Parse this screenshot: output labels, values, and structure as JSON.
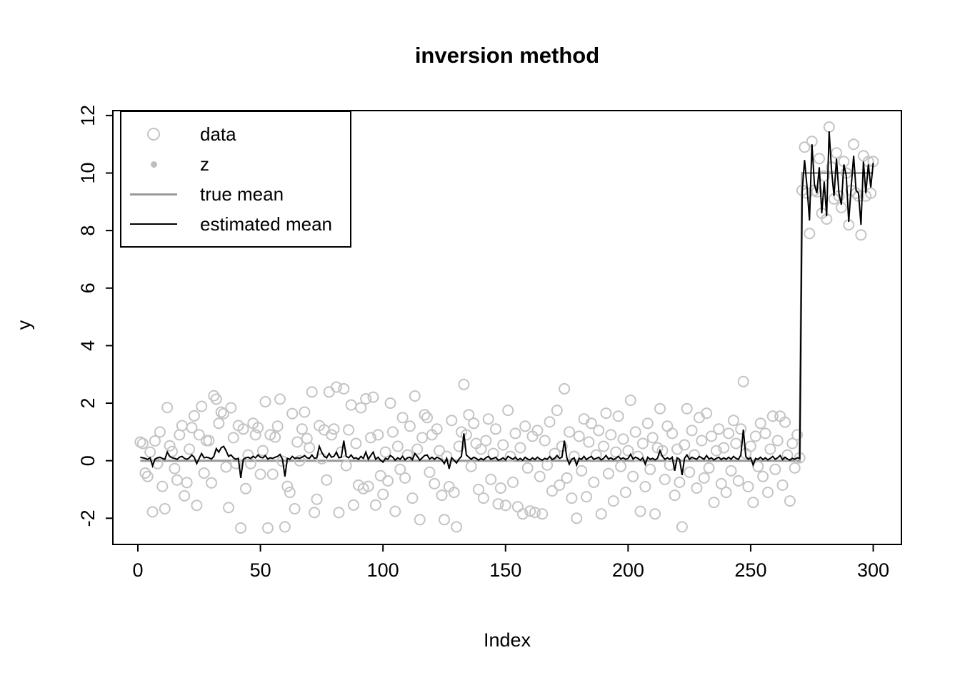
{
  "title": "inversion method",
  "x_axis": {
    "label": "Index",
    "ticks": [
      0,
      50,
      100,
      150,
      200,
      250,
      300
    ]
  },
  "y_axis": {
    "label": "y",
    "ticks": [
      -2,
      0,
      2,
      4,
      6,
      8,
      10,
      12
    ]
  },
  "legend": {
    "position": "topleft",
    "items": [
      {
        "label": "data",
        "symbol": "open-circle"
      },
      {
        "label": "z",
        "symbol": "filled-dot"
      },
      {
        "label": "true mean",
        "symbol": "gray-line"
      },
      {
        "label": "estimated mean",
        "symbol": "black-line"
      }
    ]
  },
  "colors": {
    "data_circle": "#c4c4c4",
    "z_dot": "#bebebe",
    "true_mean": "#999999",
    "estimated_mean": "#000000",
    "frame": "#000000",
    "text": "#000000"
  },
  "chart_data": {
    "type": "scatter",
    "title": "inversion method",
    "xlabel": "Index",
    "ylabel": "y",
    "xlim": [
      -10.2,
      311.5
    ],
    "ylim": [
      -2.91,
      12.17
    ],
    "x_ticks": [
      0,
      50,
      100,
      150,
      200,
      250,
      300
    ],
    "y_ticks": [
      -2,
      0,
      2,
      4,
      6,
      8,
      10,
      12
    ],
    "grid": false,
    "legend_position": "topleft",
    "n": 300,
    "x_is_index_1_to_n": true,
    "series": [
      {
        "name": "data",
        "style": "open-circle-points",
        "y": [
          0.65,
          0.6,
          -0.43,
          -0.55,
          0.3,
          -1.78,
          0.69,
          -0.1,
          1.0,
          -0.89,
          -1.67,
          1.85,
          0.52,
          0.32,
          -0.27,
          -0.67,
          0.9,
          1.22,
          -1.22,
          -0.76,
          0.4,
          1.15,
          1.56,
          -1.55,
          0.9,
          1.89,
          -0.43,
          0.7,
          0.7,
          -0.77,
          2.26,
          2.14,
          1.3,
          1.69,
          1.64,
          -0.22,
          -1.63,
          1.84,
          0.8,
          -0.1,
          1.22,
          -2.34,
          1.1,
          -0.97,
          0.2,
          -0.1,
          1.3,
          0.9,
          1.15,
          -0.47,
          0.35,
          2.05,
          -2.34,
          0.9,
          -0.47,
          0.82,
          1.2,
          2.14,
          -0.02,
          -2.3,
          -0.89,
          -1.1,
          1.64,
          -1.67,
          0.65,
          0.0,
          1.1,
          1.69,
          0.77,
          0.45,
          2.39,
          -1.8,
          -1.34,
          1.22,
          0.07,
          1.07,
          -0.67,
          2.39,
          0.9,
          1.1,
          2.56,
          -1.8,
          0.3,
          2.5,
          -0.17,
          1.07,
          1.94,
          -1.54,
          0.6,
          -0.85,
          1.84,
          -0.97,
          2.15,
          -0.89,
          0.8,
          2.21,
          -1.54,
          0.9,
          -0.52,
          -1.17,
          0.3,
          -0.7,
          2.0,
          1.0,
          -1.76,
          0.5,
          -0.3,
          1.5,
          -0.6,
          0.2,
          1.2,
          -1.3,
          2.25,
          0.4,
          -2.05,
          0.8,
          1.6,
          1.5,
          -0.4,
          0.9,
          -0.8,
          1.1,
          0.35,
          -1.2,
          -2.05,
          0.15,
          -0.9,
          1.4,
          -1.1,
          -2.3,
          0.5,
          1.0,
          2.65,
          0.9,
          1.6,
          -0.2,
          1.3,
          0.6,
          -1.0,
          0.4,
          -1.3,
          0.7,
          1.45,
          -0.65,
          0.25,
          1.1,
          -1.5,
          -0.95,
          0.55,
          -1.55,
          1.75,
          0.15,
          -0.75,
          0.95,
          -1.6,
          0.45,
          -1.85,
          1.2,
          -0.25,
          -1.75,
          0.85,
          -1.8,
          1.05,
          -0.55,
          -1.85,
          0.7,
          -0.15,
          1.35,
          -1.05,
          0.25,
          1.75,
          -0.85,
          0.5,
          2.5,
          -0.6,
          1.0,
          -1.3,
          0.15,
          -2.0,
          0.85,
          -0.35,
          1.45,
          -1.25,
          0.65,
          1.3,
          -0.75,
          0.2,
          1.05,
          -1.85,
          0.5,
          1.65,
          -0.45,
          0.9,
          -1.4,
          0.3,
          1.55,
          -0.2,
          0.75,
          -1.1,
          0.35,
          2.1,
          -0.55,
          1.0,
          0.15,
          -1.76,
          0.6,
          -0.9,
          1.3,
          -0.3,
          0.8,
          -1.85,
          0.45,
          1.81,
          0.35,
          -0.65,
          1.2,
          -0.15,
          0.95,
          -1.2,
          0.4,
          -0.75,
          -2.3,
          0.55,
          1.81,
          -0.4,
          1.05,
          0.2,
          -0.95,
          1.5,
          0.7,
          -0.6,
          1.65,
          -0.25,
          0.85,
          -1.45,
          0.35,
          1.1,
          -0.8,
          0.45,
          -1.1,
          0.95,
          -0.35,
          1.4,
          0.6,
          -0.7,
          1.1,
          2.75,
          0.25,
          -0.9,
          0.5,
          -1.45,
          0.85,
          -0.2,
          1.3,
          -0.55,
          0.95,
          -1.1,
          0.4,
          1.55,
          -0.3,
          0.7,
          1.55,
          -0.85,
          1.34,
          0.2,
          -1.4,
          0.6,
          -0.25,
          0.9,
          0.1,
          9.4,
          10.9,
          9.3,
          7.9,
          11.1,
          9.4,
          9.35,
          10.5,
          8.6,
          9.9,
          8.4,
          11.6,
          10.2,
          9.1,
          10.7,
          9.2,
          8.8,
          10.4,
          10.0,
          8.2,
          9.4,
          11.0,
          9.3,
          9.2,
          7.85,
          10.6,
          9.2,
          10.4,
          9.3,
          10.4
        ]
      },
      {
        "name": "z",
        "style": "filled-dot-points",
        "points_visible_in_plot": false
      },
      {
        "name": "true mean",
        "style": "step-line",
        "step": {
          "changepoint": 270,
          "before": 0,
          "after": 10
        }
      },
      {
        "name": "estimated mean",
        "style": "line",
        "y": [
          0.12,
          0.1,
          0.08,
          0.05,
          0.1,
          -0.18,
          0.06,
          0.1,
          0.12,
          0.08,
          0.05,
          0.3,
          0.15,
          0.1,
          0.08,
          0.05,
          0.12,
          0.15,
          0.08,
          0.05,
          0.1,
          0.2,
          0.12,
          -0.1,
          0.08,
          0.25,
          0.1,
          0.12,
          0.1,
          0.06,
          0.15,
          0.42,
          0.3,
          0.45,
          0.5,
          0.35,
          0.15,
          0.2,
          0.1,
          0.05,
          0.08,
          -0.6,
          0.05,
          0.1,
          0.12,
          0.08,
          0.15,
          0.1,
          0.2,
          0.12,
          0.1,
          0.18,
          0.06,
          0.1,
          0.08,
          0.12,
          0.15,
          0.22,
          0.05,
          -0.55,
          0.08,
          0.05,
          0.15,
          0.08,
          0.1,
          0.08,
          0.12,
          0.18,
          0.1,
          0.08,
          0.2,
          0.08,
          0.1,
          0.5,
          0.3,
          0.15,
          0.1,
          0.25,
          0.12,
          0.15,
          0.3,
          0.1,
          0.12,
          0.7,
          0.15,
          0.1,
          0.2,
          0.08,
          0.1,
          0.05,
          0.15,
          0.08,
          0.3,
          0.05,
          0.18,
          0.3,
          0.05,
          0.12,
          0.02,
          -0.05,
          0.08,
          0.05,
          0.18,
          0.12,
          0.02,
          0.1,
          0.05,
          0.15,
          0.03,
          0.1,
          0.12,
          0.04,
          0.25,
          0.15,
          0.02,
          0.1,
          0.18,
          0.2,
          0.06,
          0.12,
          0.05,
          0.12,
          0.08,
          0.03,
          -0.1,
          0.08,
          -0.28,
          0.1,
          0.02,
          -0.08,
          0.06,
          0.15,
          0.95,
          0.2,
          0.12,
          0.05,
          0.12,
          0.08,
          0.02,
          0.08,
          0.03,
          0.1,
          0.15,
          0.05,
          0.08,
          0.12,
          0.02,
          0.05,
          0.1,
          0.03,
          0.15,
          0.1,
          0.05,
          0.12,
          0.03,
          0.08,
          0.02,
          0.12,
          0.06,
          0.03,
          0.1,
          0.04,
          0.12,
          0.06,
          0.02,
          0.08,
          0.05,
          0.14,
          0.04,
          0.08,
          0.18,
          0.08,
          0.12,
          0.7,
          0.1,
          -0.12,
          0.05,
          0.1,
          -0.15,
          0.08,
          0.05,
          0.15,
          0.04,
          0.1,
          0.15,
          0.05,
          0.08,
          0.12,
          0.03,
          0.08,
          0.18,
          0.06,
          0.1,
          0.04,
          0.08,
          0.15,
          0.06,
          0.1,
          0.05,
          0.08,
          0.22,
          0.06,
          0.12,
          0.08,
          0.02,
          0.1,
          -0.12,
          0.12,
          0.05,
          0.08,
          0.03,
          0.08,
          0.35,
          0.15,
          0.05,
          0.1,
          0.05,
          0.12,
          -0.35,
          0.1,
          0.05,
          -0.5,
          0.08,
          0.2,
          0.05,
          0.12,
          0.08,
          0.05,
          0.15,
          0.1,
          0.05,
          0.18,
          0.06,
          0.1,
          0.03,
          0.08,
          0.12,
          0.04,
          0.1,
          0.05,
          0.12,
          0.05,
          0.15,
          0.08,
          0.05,
          0.2,
          1.08,
          0.15,
          0.05,
          0.1,
          -0.15,
          0.08,
          0.05,
          0.12,
          0.04,
          0.1,
          0.03,
          0.08,
          0.15,
          0.05,
          0.1,
          0.18,
          0.04,
          0.12,
          0.06,
          0.02,
          0.08,
          0.05,
          0.1,
          0.08,
          9.35,
          10.45,
          9.5,
          8.35,
          11.0,
          9.6,
          9.3,
          10.2,
          8.6,
          9.7,
          8.5,
          11.45,
          10.1,
          9.2,
          10.5,
          9.3,
          8.9,
          10.3,
          9.9,
          8.3,
          9.5,
          10.6,
          9.4,
          9.3,
          8.2,
          10.4,
          9.3,
          10.3,
          9.5,
          10.35
        ]
      }
    ]
  }
}
